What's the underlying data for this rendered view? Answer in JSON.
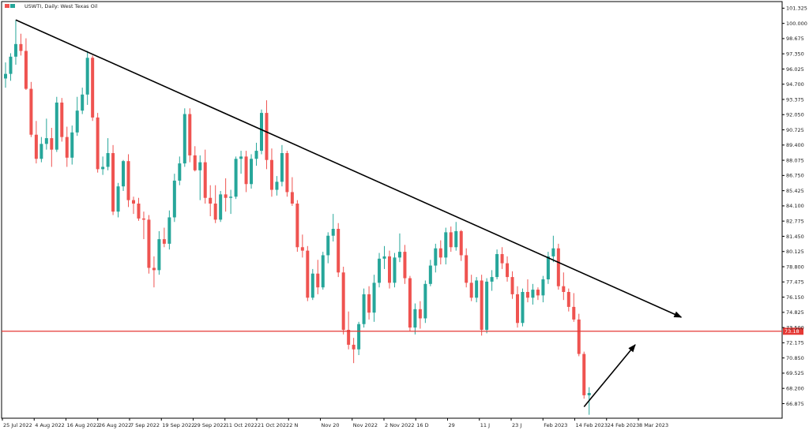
{
  "chart_data": {
    "type": "candlestick",
    "title": "USWTI, Daily: West Texas Oil",
    "symbol": "USWTI",
    "timeframe": "Daily",
    "instrument": "West Texas Oil",
    "y_range": [
      65.6,
      101.9
    ],
    "y_ticks": [
      "101.325",
      "100.000",
      "98.675",
      "97.350",
      "96.025",
      "94.700",
      "93.375",
      "92.050",
      "90.725",
      "89.400",
      "88.075",
      "86.750",
      "85.425",
      "84.100",
      "82.775",
      "81.450",
      "80.125",
      "78.800",
      "77.475",
      "76.150",
      "74.825",
      "73.500",
      "72.175",
      "70.850",
      "69.525",
      "68.200",
      "66.875"
    ],
    "x_ticks": [
      "25 Jul 2022",
      "4 Aug 2022",
      "16 Aug 2022",
      "26 Aug 2022",
      "7 Sep 2022",
      "19 Sep 2022",
      "29 Sep 2022",
      "11 Oct 2022",
      "21 Oct 2022",
      "2 N",
      "Nov 20",
      "Nov 2022",
      "2 Nov 2022",
      "16 D",
      "29",
      "11 J",
      "23 J",
      "Feb 2023",
      "14 Feb 2023",
      "24 Feb 2023",
      "8 Mar 2023"
    ],
    "horizontal_level": {
      "value": 73.18,
      "label": "73.18",
      "color": "#e53935"
    },
    "colors": {
      "up": "#26a69a",
      "down": "#ef5350",
      "trendline": "#000000",
      "grid_border": "#000000"
    },
    "candles_ohlc": [
      [
        95.2,
        96.6,
        94.4,
        95.6
      ],
      [
        95.6,
        97.4,
        95.0,
        97.1
      ],
      [
        97.1,
        100.3,
        96.4,
        98.2
      ],
      [
        98.2,
        99.1,
        97.2,
        97.6
      ],
      [
        97.6,
        98.7,
        94.2,
        94.3
      ],
      [
        94.3,
        94.9,
        90.1,
        90.3
      ],
      [
        90.3,
        91.5,
        87.8,
        88.2
      ],
      [
        88.2,
        90.1,
        87.9,
        89.5
      ],
      [
        89.5,
        91.7,
        89.0,
        90.0
      ],
      [
        90.0,
        90.9,
        87.5,
        89.0
      ],
      [
        89.0,
        93.6,
        88.8,
        93.1
      ],
      [
        93.1,
        93.5,
        89.7,
        90.1
      ],
      [
        90.1,
        91.0,
        87.5,
        88.3
      ],
      [
        88.3,
        91.1,
        87.7,
        90.5
      ],
      [
        90.5,
        93.6,
        90.2,
        92.4
      ],
      [
        92.4,
        94.4,
        92.1,
        93.8
      ],
      [
        93.8,
        97.6,
        92.9,
        97.0
      ],
      [
        97.0,
        97.2,
        91.5,
        91.8
      ],
      [
        91.8,
        92.2,
        87.0,
        87.3
      ],
      [
        87.3,
        88.4,
        86.8,
        87.5
      ],
      [
        87.5,
        90.0,
        87.2,
        88.7
      ],
      [
        88.7,
        89.4,
        83.3,
        83.6
      ],
      [
        83.6,
        86.1,
        83.1,
        85.8
      ],
      [
        85.8,
        88.1,
        85.4,
        88.0
      ],
      [
        88.0,
        88.6,
        84.0,
        84.6
      ],
      [
        84.6,
        84.9,
        83.4,
        84.3
      ],
      [
        84.3,
        84.8,
        82.8,
        83.0
      ],
      [
        83.0,
        83.6,
        81.2,
        82.9
      ],
      [
        82.9,
        83.3,
        78.2,
        78.7
      ],
      [
        78.7,
        79.7,
        77.0,
        78.5
      ],
      [
        78.5,
        81.9,
        78.1,
        81.2
      ],
      [
        81.2,
        82.2,
        80.5,
        80.8
      ],
      [
        80.8,
        83.7,
        80.3,
        83.1
      ],
      [
        83.1,
        86.9,
        82.7,
        86.3
      ],
      [
        86.3,
        88.4,
        85.9,
        87.8
      ],
      [
        87.8,
        92.6,
        87.5,
        92.1
      ],
      [
        92.1,
        92.6,
        87.9,
        88.5
      ],
      [
        88.5,
        89.3,
        87.1,
        87.2
      ],
      [
        87.2,
        88.5,
        84.6,
        87.9
      ],
      [
        87.9,
        89.0,
        84.3,
        84.8
      ],
      [
        84.8,
        85.9,
        83.2,
        84.3
      ],
      [
        84.3,
        85.9,
        82.6,
        82.9
      ],
      [
        82.9,
        85.4,
        82.7,
        85.1
      ],
      [
        85.1,
        86.5,
        83.6,
        84.8
      ],
      [
        84.8,
        85.5,
        83.4,
        84.9
      ],
      [
        84.9,
        88.4,
        84.7,
        88.2
      ],
      [
        88.2,
        88.9,
        86.9,
        88.4
      ],
      [
        88.4,
        88.9,
        85.3,
        86.0
      ],
      [
        86.0,
        88.6,
        85.6,
        88.2
      ],
      [
        88.2,
        89.6,
        87.6,
        88.9
      ],
      [
        88.9,
        92.5,
        88.6,
        92.2
      ],
      [
        92.2,
        93.3,
        87.3,
        88.1
      ],
      [
        88.1,
        89.1,
        84.9,
        85.5
      ],
      [
        85.5,
        86.7,
        85.0,
        86.2
      ],
      [
        86.2,
        89.4,
        85.8,
        88.7
      ],
      [
        88.7,
        88.9,
        84.9,
        85.3
      ],
      [
        85.3,
        86.6,
        84.1,
        84.3
      ],
      [
        84.3,
        84.6,
        80.1,
        80.5
      ],
      [
        80.5,
        81.6,
        79.6,
        80.2
      ],
      [
        80.2,
        80.6,
        75.8,
        76.1
      ],
      [
        76.1,
        78.6,
        75.9,
        78.2
      ],
      [
        78.2,
        79.4,
        76.4,
        77.0
      ],
      [
        77.0,
        80.1,
        76.8,
        79.8
      ],
      [
        79.8,
        81.8,
        79.1,
        81.5
      ],
      [
        81.5,
        83.4,
        81.0,
        82.1
      ],
      [
        82.1,
        82.6,
        77.9,
        78.3
      ],
      [
        78.3,
        78.8,
        72.9,
        73.3
      ],
      [
        73.3,
        74.9,
        71.6,
        72.0
      ],
      [
        72.0,
        72.6,
        70.4,
        71.6
      ],
      [
        71.6,
        74.0,
        71.1,
        73.8
      ],
      [
        73.8,
        76.9,
        73.5,
        76.4
      ],
      [
        76.4,
        77.1,
        74.2,
        74.8
      ],
      [
        74.8,
        78.1,
        74.0,
        77.4
      ],
      [
        77.4,
        80.0,
        77.0,
        79.5
      ],
      [
        79.5,
        80.6,
        78.6,
        79.7
      ],
      [
        79.7,
        80.2,
        76.9,
        77.4
      ],
      [
        77.4,
        80.0,
        77.0,
        79.6
      ],
      [
        79.6,
        81.7,
        79.2,
        80.1
      ],
      [
        80.1,
        80.7,
        77.3,
        77.8
      ],
      [
        77.8,
        78.0,
        73.2,
        73.5
      ],
      [
        73.5,
        75.6,
        72.9,
        75.1
      ],
      [
        75.1,
        75.8,
        73.4,
        74.3
      ],
      [
        74.3,
        77.6,
        73.9,
        77.3
      ],
      [
        77.3,
        79.4,
        77.1,
        78.9
      ],
      [
        78.9,
        80.8,
        78.3,
        80.4
      ],
      [
        80.4,
        81.1,
        79.0,
        79.6
      ],
      [
        79.6,
        82.2,
        79.0,
        81.8
      ],
      [
        81.8,
        82.3,
        80.1,
        80.5
      ],
      [
        80.5,
        82.7,
        80.2,
        81.9
      ],
      [
        81.9,
        82.0,
        79.3,
        79.8
      ],
      [
        79.8,
        80.4,
        77.0,
        77.4
      ],
      [
        77.4,
        78.1,
        75.8,
        76.1
      ],
      [
        76.1,
        77.9,
        75.7,
        77.6
      ],
      [
        77.6,
        78.1,
        72.8,
        73.3
      ],
      [
        73.3,
        77.8,
        73.0,
        77.5
      ],
      [
        77.5,
        78.5,
        76.7,
        77.9
      ],
      [
        77.9,
        80.3,
        77.7,
        79.9
      ],
      [
        79.9,
        80.5,
        78.6,
        79.1
      ],
      [
        79.1,
        79.7,
        77.5,
        77.9
      ],
      [
        77.9,
        78.4,
        76.0,
        76.4
      ],
      [
        76.4,
        77.1,
        73.5,
        73.9
      ],
      [
        73.9,
        76.9,
        73.6,
        76.6
      ],
      [
        76.6,
        77.7,
        75.7,
        76.1
      ],
      [
        76.1,
        77.3,
        75.5,
        76.8
      ],
      [
        76.8,
        77.0,
        75.9,
        76.3
      ],
      [
        76.3,
        78.0,
        75.7,
        77.7
      ],
      [
        77.7,
        80.1,
        77.3,
        79.7
      ],
      [
        79.7,
        81.5,
        79.2,
        80.4
      ],
      [
        80.4,
        80.8,
        76.8,
        77.1
      ],
      [
        77.1,
        78.3,
        75.9,
        76.6
      ],
      [
        76.6,
        76.9,
        74.9,
        75.3
      ],
      [
        75.3,
        76.5,
        74.0,
        74.2
      ],
      [
        74.2,
        74.7,
        71.0,
        71.2
      ],
      [
        71.2,
        71.4,
        67.3,
        67.6
      ],
      [
        67.6,
        68.3,
        65.9,
        67.8
      ]
    ],
    "trendlines": [
      {
        "from": {
          "candle_index": 2,
          "value": 100.3
        },
        "to": {
          "candle_index": 132,
          "value": 74.4
        },
        "arrow": true
      },
      {
        "from": {
          "candle_index": 113,
          "value": 66.6
        },
        "to": {
          "candle_index": 123,
          "value": 72.0
        },
        "arrow": true
      }
    ],
    "grid": false,
    "legend": "none"
  }
}
